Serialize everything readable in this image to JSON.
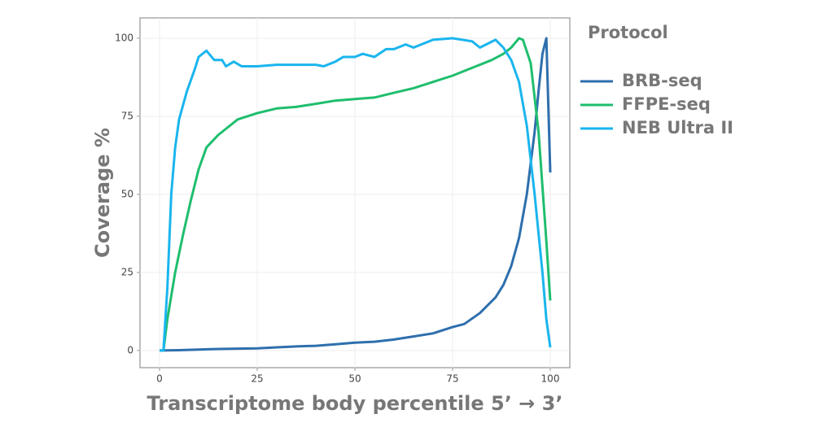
{
  "chart_data": {
    "type": "line",
    "xlabel": "Transcriptome body percentile 5’ → 3’",
    "ylabel": "Coverage %",
    "legend_title": "Protocol",
    "legend": "right",
    "grid": true,
    "xlim": [
      -5,
      105
    ],
    "ylim": [
      -5.5,
      106.5
    ],
    "xticks": [
      0,
      25,
      50,
      75,
      100
    ],
    "yticks": [
      0,
      25,
      50,
      75,
      100
    ],
    "series": [
      {
        "name": "BRB-seq",
        "color": "#2e6fad",
        "x": [
          0,
          5,
          10,
          15,
          20,
          25,
          30,
          35,
          40,
          45,
          50,
          55,
          60,
          65,
          70,
          75,
          78,
          82,
          86,
          88,
          90,
          92,
          94,
          96,
          97,
          98,
          99,
          100
        ],
        "values": [
          0,
          0.1,
          0.3,
          0.5,
          0.6,
          0.7,
          1,
          1.3,
          1.5,
          2,
          2.5,
          2.8,
          3.5,
          4.5,
          5.5,
          7.5,
          8.5,
          12,
          17,
          21,
          27,
          36,
          50,
          70,
          83,
          95,
          100,
          57
        ]
      },
      {
        "name": "FFPE-seq",
        "color": "#1fbe6e",
        "x": [
          0,
          1,
          2,
          4,
          6,
          8,
          10,
          12,
          15,
          18,
          20,
          25,
          30,
          35,
          40,
          45,
          50,
          55,
          60,
          65,
          70,
          75,
          80,
          85,
          88,
          90,
          92,
          93,
          95,
          97,
          99,
          100
        ],
        "values": [
          0,
          0,
          10,
          25,
          37,
          48,
          58,
          65,
          69,
          72,
          74,
          76,
          77.5,
          78,
          79,
          80,
          80.5,
          81,
          82.5,
          84,
          86,
          88,
          90.5,
          93,
          95,
          97,
          100,
          99.5,
          92,
          70,
          35,
          16
        ]
      },
      {
        "name": "NEB Ultra II",
        "color": "#1ab5ee",
        "x": [
          0,
          1,
          2,
          3,
          4,
          5,
          7,
          9,
          10,
          12,
          14,
          16,
          17,
          19,
          21,
          25,
          30,
          35,
          40,
          42,
          45,
          47,
          50,
          52,
          55,
          58,
          60,
          63,
          65,
          70,
          75,
          80,
          82,
          86,
          88,
          90,
          92,
          94,
          96,
          98,
          99,
          100
        ],
        "values": [
          0,
          0,
          20,
          50,
          65,
          74,
          83,
          90,
          94,
          96,
          93,
          93,
          91,
          92.5,
          91,
          91,
          91.5,
          91.5,
          91.5,
          91,
          92.5,
          94,
          94,
          95,
          94,
          96.5,
          96.5,
          98,
          97,
          99.5,
          100,
          99,
          97,
          99.5,
          97,
          93,
          86,
          72,
          50,
          25,
          10,
          1
        ]
      }
    ]
  }
}
